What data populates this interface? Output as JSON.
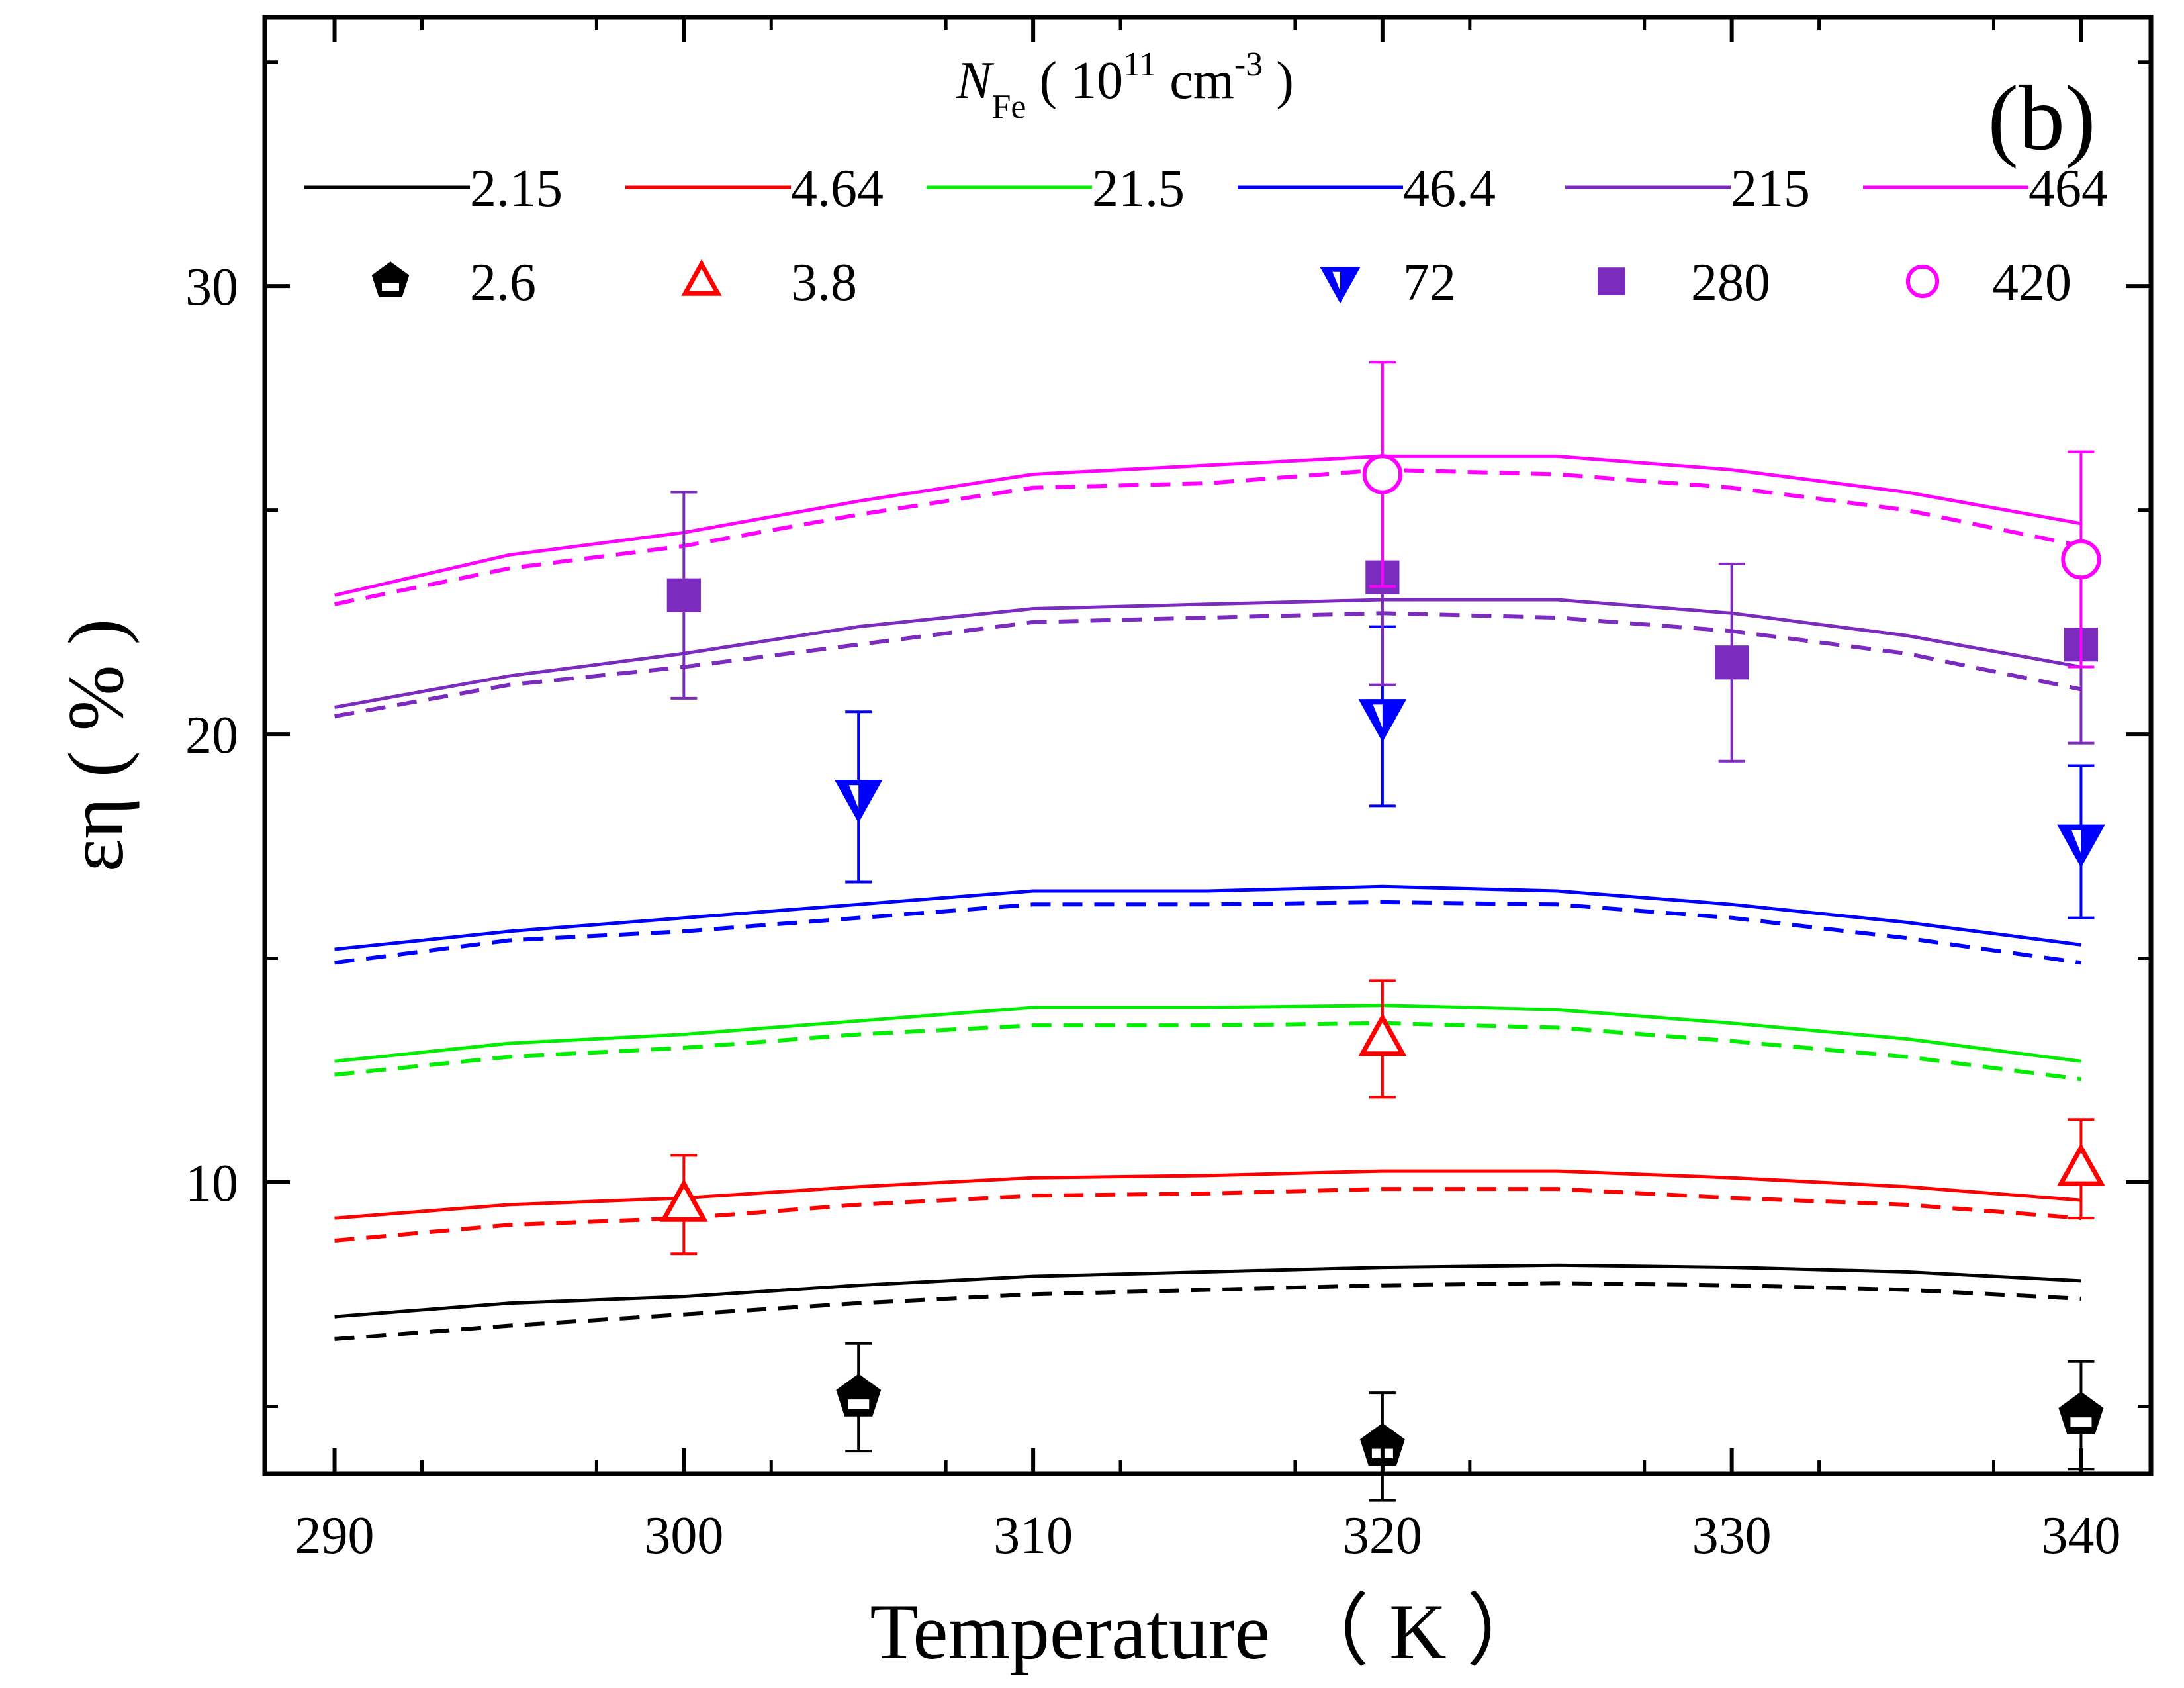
{
  "chart_data": {
    "type": "line",
    "panel_label": "(b)",
    "xlabel": "Temperature （ K ）",
    "ylabel": "εη ( % )",
    "legend_title": {
      "symbol": "N",
      "sub": "Fe",
      "open": "( 10",
      "sup1": "11",
      "unit": " cm",
      "sup2": "-3",
      "close": " )"
    },
    "xlim": [
      288,
      342
    ],
    "ylim": [
      3.5,
      36
    ],
    "x_ticks": [
      290,
      300,
      310,
      320,
      330,
      340
    ],
    "x_tick_labels": [
      "290",
      "300",
      "310",
      "320",
      "330",
      "340"
    ],
    "y_ticks": [
      10,
      20,
      30
    ],
    "y_tick_labels": [
      "10",
      "20",
      "30"
    ],
    "x": [
      290,
      295,
      300,
      305,
      310,
      315,
      320,
      325,
      330,
      335,
      340
    ],
    "series": [
      {
        "name": "2.15",
        "color": "#000000",
        "solid": [
          7.0,
          7.3,
          7.45,
          7.7,
          7.9,
          8.0,
          8.1,
          8.15,
          8.1,
          8.0,
          7.8
        ],
        "dashed": [
          6.5,
          6.8,
          7.05,
          7.3,
          7.5,
          7.6,
          7.7,
          7.75,
          7.7,
          7.6,
          7.4
        ]
      },
      {
        "name": "4.64",
        "color": "#ff0000",
        "solid": [
          9.2,
          9.5,
          9.65,
          9.9,
          10.1,
          10.15,
          10.25,
          10.25,
          10.1,
          9.9,
          9.6
        ],
        "dashed": [
          8.7,
          9.05,
          9.2,
          9.5,
          9.7,
          9.75,
          9.85,
          9.85,
          9.65,
          9.5,
          9.2
        ]
      },
      {
        "name": "21.5",
        "color": "#00ee00",
        "solid": [
          12.7,
          13.1,
          13.3,
          13.6,
          13.9,
          13.9,
          13.95,
          13.85,
          13.55,
          13.2,
          12.7
        ],
        "dashed": [
          12.4,
          12.8,
          13.0,
          13.3,
          13.5,
          13.5,
          13.55,
          13.45,
          13.15,
          12.8,
          12.3
        ]
      },
      {
        "name": "46.4",
        "color": "#0000ff",
        "solid": [
          15.2,
          15.6,
          15.9,
          16.2,
          16.5,
          16.5,
          16.6,
          16.5,
          16.2,
          15.8,
          15.3
        ],
        "dashed": [
          14.9,
          15.4,
          15.6,
          15.9,
          16.2,
          16.2,
          16.25,
          16.2,
          15.9,
          15.45,
          14.9
        ]
      },
      {
        "name": "215",
        "color": "#7b2bbd",
        "solid": [
          20.6,
          21.3,
          21.8,
          22.4,
          22.8,
          22.9,
          23.0,
          23.0,
          22.7,
          22.2,
          21.5
        ],
        "dashed": [
          20.4,
          21.1,
          21.5,
          22.0,
          22.5,
          22.6,
          22.7,
          22.6,
          22.3,
          21.8,
          21.0
        ]
      },
      {
        "name": "464",
        "color": "#ff00ff",
        "solid": [
          23.1,
          24.0,
          24.5,
          25.2,
          25.8,
          26.0,
          26.2,
          26.2,
          25.9,
          25.4,
          24.7
        ],
        "dashed": [
          22.9,
          23.7,
          24.2,
          24.9,
          25.5,
          25.6,
          25.9,
          25.8,
          25.5,
          25.0,
          24.2
        ]
      }
    ],
    "measured": [
      {
        "name": "2.6",
        "color": "#000000",
        "marker": "pentagon",
        "points": [
          {
            "x": 305,
            "y": 5.2,
            "err": 1.2
          },
          {
            "x": 320,
            "y": 4.1,
            "err": 1.2
          },
          {
            "x": 340,
            "y": 4.8,
            "err": 1.2
          }
        ]
      },
      {
        "name": "3.8",
        "color": "#ff0000",
        "marker": "triangle-up-open",
        "points": [
          {
            "x": 300,
            "y": 9.5,
            "err": 1.1
          },
          {
            "x": 320,
            "y": 13.2,
            "err": 1.3
          },
          {
            "x": 340,
            "y": 10.3,
            "err": 1.1
          }
        ]
      },
      {
        "name": "72",
        "color": "#0000ff",
        "marker": "triangle-down-half",
        "points": [
          {
            "x": 305,
            "y": 18.6,
            "err": 1.9
          },
          {
            "x": 320,
            "y": 20.4,
            "err": 2.0
          },
          {
            "x": 340,
            "y": 17.6,
            "err": 1.7
          }
        ]
      },
      {
        "name": "280",
        "color": "#7b2bbd",
        "marker": "square",
        "points": [
          {
            "x": 300,
            "y": 23.1,
            "err": 2.3
          },
          {
            "x": 320,
            "y": 23.5,
            "err": 2.4
          },
          {
            "x": 330,
            "y": 21.6,
            "err": 2.2
          },
          {
            "x": 340,
            "y": 22.0,
            "err": 2.2
          }
        ]
      },
      {
        "name": "420",
        "color": "#ff00ff",
        "marker": "circle-open",
        "points": [
          {
            "x": 320,
            "y": 25.8,
            "err": 2.5
          },
          {
            "x": 340,
            "y": 23.9,
            "err": 2.4
          }
        ]
      }
    ],
    "grid": false,
    "legend_position": "top"
  }
}
